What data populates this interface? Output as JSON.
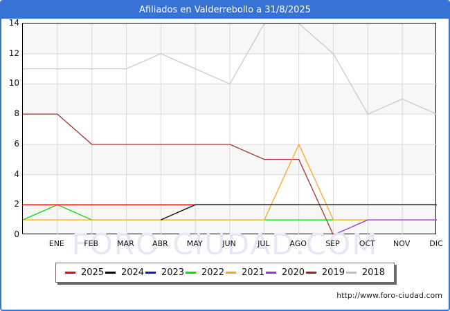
{
  "window": {
    "title": "Afiliados en Valderrebollo a 31/8/2025",
    "titlebar_color": "#3673d4",
    "watermark": "FORO-CIUDAD.COM",
    "footer_url": "http://www.foro-ciudad.com"
  },
  "chart_data": {
    "type": "line",
    "title": "Afiliados en Valderrebollo a 31/8/2025",
    "xlabel": "",
    "ylabel": "",
    "x_labels": [
      "ENE",
      "FEB",
      "MAR",
      "ABR",
      "MAY",
      "JUN",
      "JUL",
      "AGO",
      "SEP",
      "OCT",
      "NOV",
      "DIC"
    ],
    "y_ticks": [
      0,
      2,
      4,
      6,
      8,
      10,
      12,
      14
    ],
    "ylim": [
      0,
      14
    ],
    "grid": true,
    "band_colors": [
      "#f7f7f7",
      "#ffffff"
    ],
    "gridline_color": "#d9d9d9",
    "positions_note": "x position 0 is the plot left edge (point before ENE gridline); positions 1-12 sit under the month labels ENE-DIC; 'start' is each series' first x position; series listed in draw order (first = bottom).",
    "series": [
      {
        "name": "2018",
        "color": "#c9c9c9",
        "start": 0,
        "values": [
          11,
          11,
          11,
          11,
          12,
          11,
          10,
          14,
          14,
          12,
          8,
          9,
          8
        ]
      },
      {
        "name": "2019",
        "color": "#a33030",
        "start": 0,
        "values": [
          8,
          8,
          6,
          6,
          6,
          6,
          6,
          5,
          5,
          0
        ]
      },
      {
        "name": "2022",
        "color": "#00dd00",
        "start": 0,
        "values": [
          1,
          2,
          1,
          1,
          1,
          1,
          1,
          1,
          1,
          1,
          1,
          1,
          1
        ]
      },
      {
        "name": "2021",
        "color": "#ffa61c",
        "start": 0,
        "values": [
          1,
          1,
          1,
          1,
          1,
          1,
          1,
          1,
          6,
          1,
          1,
          1,
          1
        ]
      },
      {
        "name": "2020",
        "color": "#9530e0",
        "start": 9,
        "values": [
          0,
          1,
          1,
          1
        ]
      },
      {
        "name": "2023",
        "color": "#1414cc",
        "start": 0,
        "values": []
      },
      {
        "name": "2025",
        "color": "#ee0000",
        "start": 0,
        "values": [
          2,
          2,
          2,
          2,
          2,
          2,
          2,
          2,
          2
        ]
      },
      {
        "name": "2024",
        "color": "#000000",
        "start": 4,
        "values": [
          1,
          2,
          2,
          2,
          2,
          2,
          2,
          2,
          2
        ]
      }
    ],
    "legend": [
      {
        "label": "2025",
        "color": "#ee0000"
      },
      {
        "label": "2024",
        "color": "#000000"
      },
      {
        "label": "2023",
        "color": "#1414cc"
      },
      {
        "label": "2022",
        "color": "#00dd00"
      },
      {
        "label": "2021",
        "color": "#ffa61c"
      },
      {
        "label": "2020",
        "color": "#9530e0"
      },
      {
        "label": "2019",
        "color": "#8f2727"
      },
      {
        "label": "2018",
        "color": "#bfbfbf"
      }
    ],
    "legend_position": "bottom"
  }
}
